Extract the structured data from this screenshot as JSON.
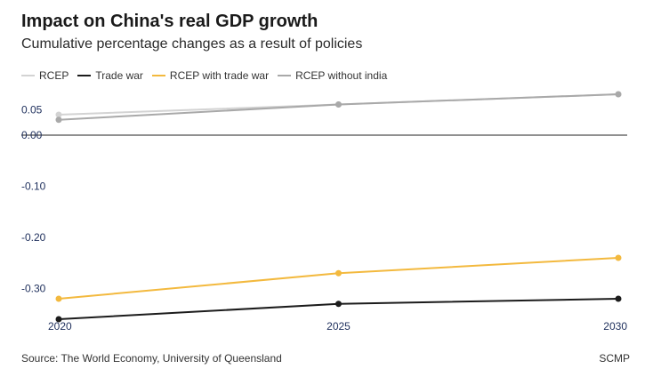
{
  "header": {
    "title": "Impact on China's real GDP growth",
    "subtitle": "Cumulative percentage changes as a result of policies"
  },
  "legend": [
    {
      "label": "RCEP",
      "color": "#d3d3d3"
    },
    {
      "label": "Trade war",
      "color": "#1c1c1c"
    },
    {
      "label": "RCEP with trade war",
      "color": "#f3b93e"
    },
    {
      "label": "RCEP without india",
      "color": "#a9a9a9"
    }
  ],
  "footer": {
    "source": "Source: The World Economy, University of Queensland",
    "brand": "SCMP"
  },
  "chart_data": {
    "type": "line",
    "title": "Impact on China's real GDP growth",
    "subtitle": "Cumulative percentage changes as a result of policies",
    "x": [
      "2020",
      "2025",
      "2030"
    ],
    "y_ticks": [
      "0.05",
      "0.00",
      "-0.10",
      "-0.20",
      "-0.30"
    ],
    "ylim": [
      -0.36,
      0.08
    ],
    "grid": false,
    "legend_position": "top-left",
    "series": [
      {
        "name": "RCEP",
        "color": "#d3d3d3",
        "values": [
          0.04,
          0.06,
          0.08
        ]
      },
      {
        "name": "Trade war",
        "color": "#1c1c1c",
        "values": [
          -0.36,
          -0.33,
          -0.32
        ]
      },
      {
        "name": "RCEP with trade war",
        "color": "#f3b93e",
        "values": [
          -0.32,
          -0.27,
          -0.24
        ]
      },
      {
        "name": "RCEP without india",
        "color": "#a9a9a9",
        "values": [
          0.03,
          0.06,
          0.08
        ]
      }
    ]
  }
}
